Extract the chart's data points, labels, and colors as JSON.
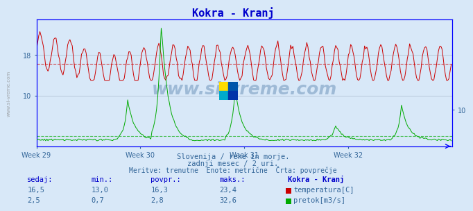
{
  "title": "Kokra - Kranj",
  "title_color": "#0000cc",
  "background_color": "#d8e8f8",
  "plot_bg_color": "#d8e8f8",
  "x_label_weeks": [
    "Week 29",
    "Week 30",
    "Week 31",
    "Week 32"
  ],
  "y_ticks_temp": [
    10,
    18
  ],
  "y_ticks_flow": [
    10
  ],
  "temp_color": "#cc0000",
  "flow_color": "#00aa00",
  "avg_temp": 16.3,
  "avg_flow": 2.8,
  "temp_min": 13.0,
  "temp_max": 23.4,
  "temp_now": 16.5,
  "flow_min": 0.7,
  "flow_max": 32.6,
  "flow_now": 2.5,
  "subtitle1": "Slovenija / reke in morje.",
  "subtitle2": "zadnji mesec / 2 uri.",
  "subtitle3": "Meritve: trenutne  Enote: metrične  Črta: povprečje",
  "text_color": "#336699",
  "axis_color": "#0000ff",
  "watermark": "www.si-vreme.com",
  "n_points": 360
}
